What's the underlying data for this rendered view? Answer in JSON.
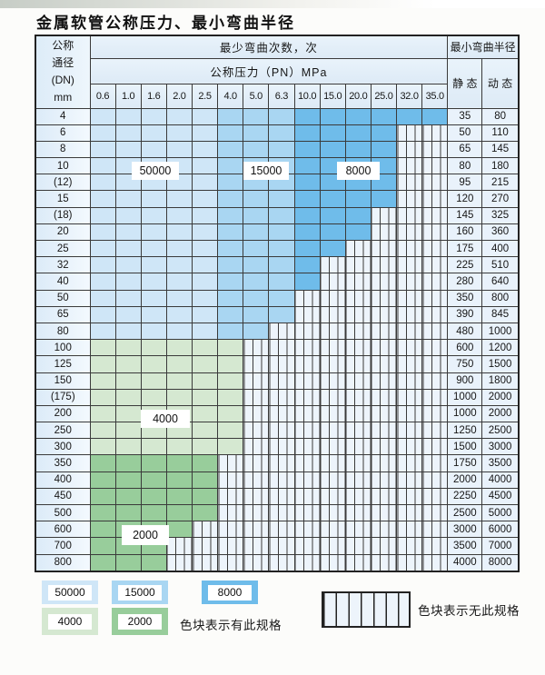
{
  "page": {
    "title": "金属软管公称压力、最小弯曲半径"
  },
  "table": {
    "corner_lines": [
      "公称",
      "通径",
      "(DN)",
      "mm"
    ],
    "bend_cycles_header": "最少弯曲次数，次",
    "pressure_header": "公称压力（PN）MPa",
    "radius_header": "最小弯曲半径",
    "static_header": "静 态",
    "dynamic_header": "动 态",
    "pressure_columns": [
      "0.6",
      "1.0",
      "1.6",
      "2.0",
      "2.5",
      "4.0",
      "5.0",
      "6.3",
      "10.0",
      "15.0",
      "20.0",
      "25.0",
      "32.0",
      "35.0"
    ],
    "zone_by_column": [
      "50000",
      "50000",
      "50000",
      "50000",
      "50000",
      "15000",
      "15000",
      "15000",
      "8000",
      "8000",
      "8000",
      "8000",
      "8000",
      "8000"
    ],
    "rows": [
      {
        "dn": "4",
        "palette": "blue",
        "colored_cols": 14,
        "static": "35",
        "dynamic": "80"
      },
      {
        "dn": "6",
        "palette": "blue",
        "colored_cols": 12,
        "static": "50",
        "dynamic": "110"
      },
      {
        "dn": "8",
        "palette": "blue",
        "colored_cols": 12,
        "static": "65",
        "dynamic": "145"
      },
      {
        "dn": "10",
        "palette": "blue",
        "colored_cols": 12,
        "static": "80",
        "dynamic": "180"
      },
      {
        "dn": "(12)",
        "palette": "blue",
        "colored_cols": 12,
        "static": "95",
        "dynamic": "215"
      },
      {
        "dn": "15",
        "palette": "blue",
        "colored_cols": 12,
        "static": "120",
        "dynamic": "270"
      },
      {
        "dn": "(18)",
        "palette": "blue",
        "colored_cols": 11,
        "static": "145",
        "dynamic": "325"
      },
      {
        "dn": "20",
        "palette": "blue",
        "colored_cols": 11,
        "static": "160",
        "dynamic": "360"
      },
      {
        "dn": "25",
        "palette": "blue",
        "colored_cols": 10,
        "static": "175",
        "dynamic": "400"
      },
      {
        "dn": "32",
        "palette": "blue",
        "colored_cols": 9,
        "static": "225",
        "dynamic": "510"
      },
      {
        "dn": "40",
        "palette": "blue",
        "colored_cols": 9,
        "static": "280",
        "dynamic": "640"
      },
      {
        "dn": "50",
        "palette": "blue",
        "colored_cols": 8,
        "static": "350",
        "dynamic": "800"
      },
      {
        "dn": "65",
        "palette": "blue",
        "colored_cols": 8,
        "static": "390",
        "dynamic": "845"
      },
      {
        "dn": "80",
        "palette": "blue",
        "colored_cols": 7,
        "static": "480",
        "dynamic": "1000"
      },
      {
        "dn": "100",
        "palette": "4000",
        "colored_cols": 6,
        "static": "600",
        "dynamic": "1200"
      },
      {
        "dn": "125",
        "palette": "4000",
        "colored_cols": 6,
        "static": "750",
        "dynamic": "1500"
      },
      {
        "dn": "150",
        "palette": "4000",
        "colored_cols": 6,
        "static": "900",
        "dynamic": "1800"
      },
      {
        "dn": "(175)",
        "palette": "4000",
        "colored_cols": 6,
        "static": "1000",
        "dynamic": "2000"
      },
      {
        "dn": "200",
        "palette": "4000",
        "colored_cols": 6,
        "static": "1000",
        "dynamic": "2000"
      },
      {
        "dn": "250",
        "palette": "4000",
        "colored_cols": 6,
        "static": "1250",
        "dynamic": "2500"
      },
      {
        "dn": "300",
        "palette": "4000",
        "colored_cols": 6,
        "static": "1500",
        "dynamic": "3000"
      },
      {
        "dn": "350",
        "palette": "2000",
        "colored_cols": 5,
        "static": "1750",
        "dynamic": "3500"
      },
      {
        "dn": "400",
        "palette": "2000",
        "colored_cols": 5,
        "static": "2000",
        "dynamic": "4000"
      },
      {
        "dn": "450",
        "palette": "2000",
        "colored_cols": 5,
        "static": "2250",
        "dynamic": "4500"
      },
      {
        "dn": "500",
        "palette": "2000",
        "colored_cols": 5,
        "static": "2500",
        "dynamic": "5000"
      },
      {
        "dn": "600",
        "palette": "2000",
        "colored_cols": 4,
        "static": "3000",
        "dynamic": "6000"
      },
      {
        "dn": "700",
        "palette": "2000",
        "colored_cols": 3,
        "static": "3500",
        "dynamic": "7000"
      },
      {
        "dn": "800",
        "palette": "2000",
        "colored_cols": 3,
        "static": "4000",
        "dynamic": "8000"
      }
    ],
    "overlay_labels": [
      {
        "text": "50000"
      },
      {
        "text": "15000"
      },
      {
        "text": "8000"
      },
      {
        "text": "4000"
      },
      {
        "text": "2000"
      }
    ]
  },
  "legend": {
    "swatches": [
      {
        "text": "50000"
      },
      {
        "text": "15000"
      },
      {
        "text": "8000"
      },
      {
        "text": "4000"
      },
      {
        "text": "2000"
      }
    ],
    "has_spec_note": "色块表示有此规格",
    "no_spec_note": "色块表示无此规格"
  },
  "colors": {
    "blue_50000": "#cfe6f7",
    "blue_15000": "#a9d6f2",
    "blue_8000": "#6fbcea",
    "green_4000": "#d5e8d1",
    "green_2000": "#98cd9b",
    "hatch_bg": "#edf4fb",
    "grid": "#3a3a3a"
  }
}
